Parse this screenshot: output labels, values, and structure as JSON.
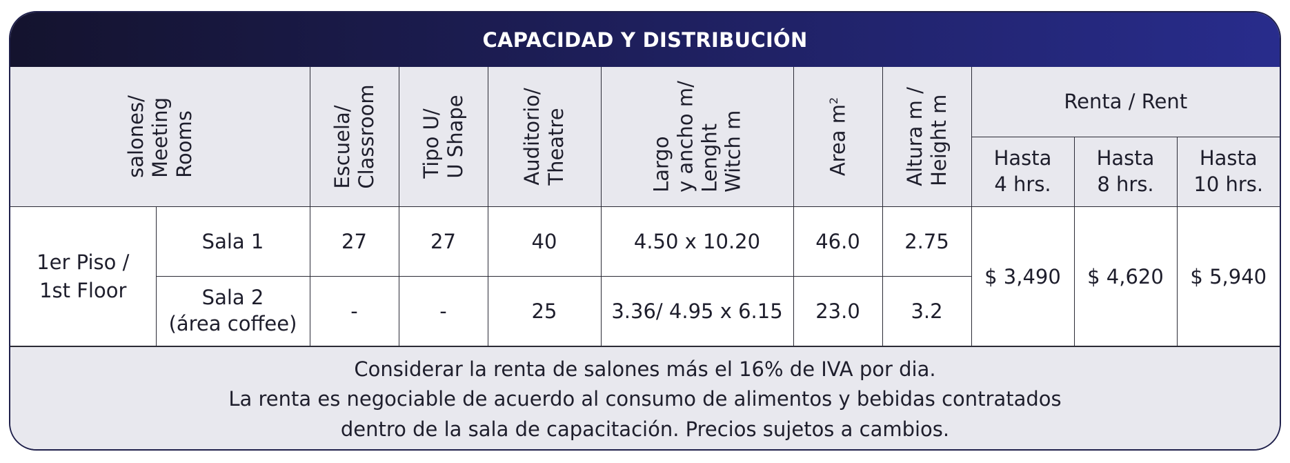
{
  "title": "CAPACIDAD Y DISTRIBUCIÓN",
  "headers": {
    "salones": [
      "salones/",
      "Meeting",
      "Rooms"
    ],
    "escuela": [
      "Escuela/",
      "Classroom"
    ],
    "tipo_u": [
      "Tipo U/",
      "U Shape"
    ],
    "auditorio": [
      "Auditorio/",
      "Theatre"
    ],
    "largo": [
      "Largo",
      "y ancho m/",
      "Lenght",
      "Witch m"
    ],
    "area": "Area m",
    "area_sup": "2",
    "altura": [
      "Altura m /",
      "Height m"
    ],
    "renta": "Renta / Rent",
    "hasta": [
      {
        "line1": "Hasta",
        "line2": "4 hrs."
      },
      {
        "line1": "Hasta",
        "line2": "8 hrs."
      },
      {
        "line1": "Hasta",
        "line2": "10 hrs."
      }
    ]
  },
  "floor": {
    "line1": "1er  Piso /",
    "line2": "1st Floor"
  },
  "rooms": [
    {
      "name": "Sala 1",
      "name2": "",
      "escuela": "27",
      "tipo_u": "27",
      "auditorio": "40",
      "dims": "4.50 x 10.20",
      "area": "46.0",
      "altura": "2.75"
    },
    {
      "name": "Sala 2",
      "name2": "(área coffee)",
      "escuela": "-",
      "tipo_u": "-",
      "auditorio": "25",
      "dims": "3.36/ 4.95 x 6.15",
      "area": "23.0",
      "altura": "3.2"
    }
  ],
  "prices": [
    "$ 3,490",
    "$ 4,620",
    "$ 5,940"
  ],
  "notes": [
    "Considerar la renta de salones más el 16% de IVA por dia.",
    "La renta es negociable de acuerdo al consumo de alimentos y bebidas contratados",
    "dentro de la sala de capacitación. Precios sujetos a cambios."
  ],
  "colors": {
    "title_start": "#14132e",
    "title_end": "#282c8c",
    "header_bg": "#e8e8ee",
    "border": "#2a2a35"
  }
}
